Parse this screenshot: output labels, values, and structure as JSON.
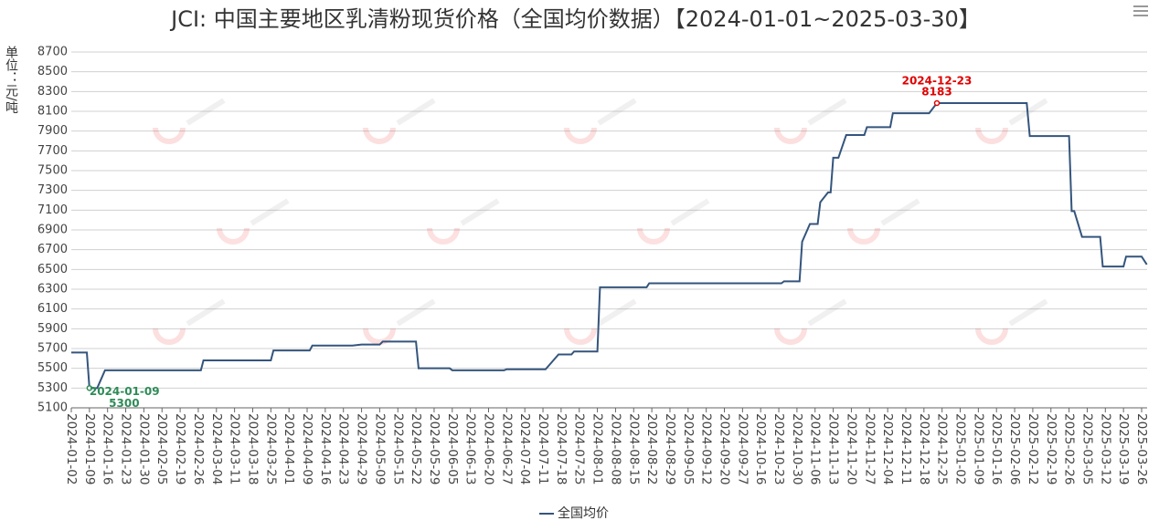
{
  "chart_data": {
    "type": "line",
    "title": "JCI: 中国主要地区乳清粉现货价格（全国均价数据）【2024-01-01~2025-03-30】",
    "y_label": "单位：元/吨",
    "x": [
      "2024-01-02",
      "2024-01-08",
      "2024-01-09",
      "2024-01-12",
      "2024-01-15",
      "2024-02-27",
      "2024-02-28",
      "2024-03-25",
      "2024-03-26",
      "2024-04-10",
      "2024-04-11",
      "2024-04-26",
      "2024-04-29",
      "2024-05-09",
      "2024-05-10",
      "2024-05-22",
      "2024-05-23",
      "2024-06-04",
      "2024-06-05",
      "2024-06-26",
      "2024-06-27",
      "2024-07-12",
      "2024-07-15",
      "2024-07-17",
      "2024-07-22",
      "2024-07-23",
      "2024-08-01",
      "2024-08-02",
      "2024-08-20",
      "2024-08-21",
      "2024-10-24",
      "2024-10-25",
      "2024-10-31",
      "2024-11-01",
      "2024-11-04",
      "2024-11-07",
      "2024-11-08",
      "2024-11-11",
      "2024-11-12",
      "2024-11-13",
      "2024-11-15",
      "2024-11-18",
      "2024-11-25",
      "2024-11-26",
      "2024-12-05",
      "2024-12-06",
      "2024-12-20",
      "2024-12-23",
      "2025-02-10",
      "2025-02-11",
      "2025-02-26",
      "2025-02-27",
      "2025-02-28",
      "2025-03-03",
      "2025-03-10",
      "2025-03-11",
      "2025-03-19",
      "2025-03-20",
      "2025-03-26",
      "2025-03-28"
    ],
    "series": [
      {
        "name": "全国均价",
        "color": "#34557d",
        "values": [
          5660,
          5660,
          5300,
          5300,
          5480,
          5480,
          5580,
          5580,
          5680,
          5680,
          5730,
          5730,
          5740,
          5740,
          5770,
          5770,
          5500,
          5500,
          5480,
          5480,
          5490,
          5490,
          5580,
          5640,
          5640,
          5670,
          5670,
          6320,
          6320,
          6360,
          6360,
          6380,
          6380,
          6780,
          6960,
          6960,
          7180,
          7280,
          7280,
          7630,
          7630,
          7860,
          7860,
          7940,
          7940,
          8080,
          8080,
          8183,
          8183,
          7850,
          7850,
          7090,
          7090,
          6830,
          6830,
          6530,
          6530,
          6630,
          6630,
          6550
        ]
      }
    ],
    "xticks": [
      "2024-01-02",
      "2024-01-09",
      "2024-01-16",
      "2024-01-23",
      "2024-01-30",
      "2024-02-05",
      "2024-02-19",
      "2024-02-26",
      "2024-03-04",
      "2024-03-11",
      "2024-03-18",
      "2024-03-25",
      "2024-04-01",
      "2024-04-09",
      "2024-04-16",
      "2024-04-23",
      "2024-04-29",
      "2024-05-09",
      "2024-05-15",
      "2024-05-22",
      "2024-05-29",
      "2024-06-05",
      "2024-06-13",
      "2024-06-20",
      "2024-06-27",
      "2024-07-04",
      "2024-07-11",
      "2024-07-18",
      "2024-07-25",
      "2024-08-01",
      "2024-08-08",
      "2024-08-15",
      "2024-08-22",
      "2024-08-29",
      "2024-09-05",
      "2024-09-12",
      "2024-09-20",
      "2024-09-27",
      "2024-10-16",
      "2024-10-23",
      "2024-10-30",
      "2024-11-06",
      "2024-11-13",
      "2024-11-20",
      "2024-11-27",
      "2024-12-04",
      "2024-12-11",
      "2024-12-18",
      "2024-12-25",
      "2025-01-02",
      "2025-01-09",
      "2025-01-16",
      "2025-02-06",
      "2025-02-12",
      "2025-02-19",
      "2025-02-26",
      "2025-03-05",
      "2025-03-12",
      "2025-03-19",
      "2025-03-26"
    ],
    "ylim": [
      5100,
      8700
    ],
    "yticks": [
      5100,
      5300,
      5500,
      5700,
      5900,
      6100,
      6300,
      6500,
      6700,
      6900,
      7100,
      7300,
      7500,
      7700,
      7900,
      8100,
      8300,
      8500,
      8700
    ],
    "grid": true,
    "legend": "bottom",
    "annotations": [
      {
        "x": "2024-01-09",
        "value": 5300,
        "color": "#2e8b57"
      },
      {
        "x": "2024-12-23",
        "value": 8183,
        "color": "#e00000"
      }
    ]
  }
}
